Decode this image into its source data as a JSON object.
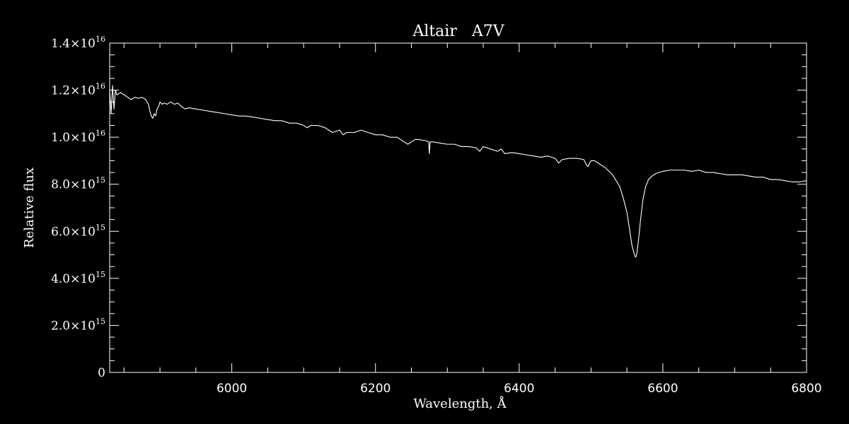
{
  "chart_data": {
    "type": "line",
    "title": "Altair   A7V",
    "xlabel": "Wavelength, Å",
    "ylabel": "Relative flux",
    "xlim": [
      5830,
      6800
    ],
    "ylim": [
      0,
      1.4e+16
    ],
    "grid": false,
    "x_ticks": [
      {
        "value": 6000,
        "label": "6000"
      },
      {
        "value": 6200,
        "label": "6200"
      },
      {
        "value": 6400,
        "label": "6400"
      },
      {
        "value": 6600,
        "label": "6600"
      },
      {
        "value": 6800,
        "label": "6800"
      }
    ],
    "y_ticks": [
      {
        "value": 0,
        "mantissa": "0",
        "exp": ""
      },
      {
        "value": 2000000000000000.0,
        "mantissa": "2.0×10",
        "exp": "15"
      },
      {
        "value": 4000000000000000.0,
        "mantissa": "4.0×10",
        "exp": "15"
      },
      {
        "value": 6000000000000000.0,
        "mantissa": "6.0×10",
        "exp": "15"
      },
      {
        "value": 8000000000000000.0,
        "mantissa": "8.0×10",
        "exp": "15"
      },
      {
        "value": 1e+16,
        "mantissa": "1.0×10",
        "exp": "16"
      },
      {
        "value": 1.2e+16,
        "mantissa": "1.2×10",
        "exp": "16"
      },
      {
        "value": 1.4e+16,
        "mantissa": "1.4×10",
        "exp": "16"
      }
    ],
    "series": [
      {
        "color": "#ffffff",
        "x": [
          5830,
          5832,
          5834,
          5836,
          5838,
          5840,
          5845,
          5850,
          5855,
          5860,
          5865,
          5870,
          5875,
          5880,
          5884,
          5886,
          5888,
          5890,
          5892,
          5894,
          5896,
          5898,
          5900,
          5903,
          5906,
          5910,
          5915,
          5920,
          5925,
          5930,
          5935,
          5940,
          5950,
          5960,
          5970,
          5980,
          5990,
          6000,
          6010,
          6020,
          6030,
          6040,
          6050,
          6060,
          6070,
          6080,
          6090,
          6100,
          6105,
          6110,
          6120,
          6130,
          6140,
          6150,
          6155,
          6160,
          6170,
          6180,
          6190,
          6200,
          6210,
          6220,
          6230,
          6240,
          6245,
          6250,
          6255,
          6260,
          6270,
          6274,
          6275,
          6276,
          6280,
          6290,
          6300,
          6310,
          6320,
          6330,
          6340,
          6345,
          6350,
          6360,
          6370,
          6375,
          6380,
          6390,
          6400,
          6410,
          6420,
          6430,
          6440,
          6450,
          6455,
          6460,
          6470,
          6480,
          6490,
          6494,
          6496,
          6498,
          6500,
          6505,
          6510,
          6520,
          6530,
          6540,
          6545,
          6550,
          6554,
          6557,
          6560,
          6562,
          6563,
          6564,
          6566,
          6569,
          6572,
          6576,
          6580,
          6585,
          6590,
          6600,
          6610,
          6620,
          6630,
          6640,
          6650,
          6660,
          6670,
          6680,
          6690,
          6700,
          6710,
          6720,
          6730,
          6740,
          6750,
          6760,
          6770,
          6780,
          6790,
          6800
        ],
        "y": [
          1.2e+16,
          1.1e+16,
          1.22e+16,
          1.12e+16,
          1.2e+16,
          1.18e+16,
          1.19e+16,
          1.18e+16,
          1.17e+16,
          1.16e+16,
          1.17e+16,
          1.165e+16,
          1.17e+16,
          1.16e+16,
          1.14e+16,
          1.11e+16,
          1.09e+16,
          1.08e+16,
          1.1e+16,
          1.09e+16,
          1.12e+16,
          1.13e+16,
          1.15e+16,
          1.14e+16,
          1.145e+16,
          1.14e+16,
          1.15e+16,
          1.14e+16,
          1.145e+16,
          1.13e+16,
          1.12e+16,
          1.125e+16,
          1.12e+16,
          1.115e+16,
          1.11e+16,
          1.105e+16,
          1.1e+16,
          1.095e+16,
          1.09e+16,
          1.09e+16,
          1.085e+16,
          1.08e+16,
          1.075e+16,
          1.07e+16,
          1.07e+16,
          1.06e+16,
          1.06e+16,
          1.05e+16,
          1.04e+16,
          1.05e+16,
          1.05e+16,
          1.04e+16,
          1.02e+16,
          1.03e+16,
          1.01e+16,
          1.02e+16,
          1.02e+16,
          1.03e+16,
          1.02e+16,
          1.01e+16,
          1.01e+16,
          1e+16,
          1e+16,
          9800000000000000.0,
          9700000000000000.0,
          9800000000000000.0,
          9900000000000000.0,
          9900000000000000.0,
          9850000000000000.0,
          9800000000000000.0,
          9300000000000000.0,
          9800000000000000.0,
          9800000000000000.0,
          9750000000000000.0,
          9700000000000000.0,
          9700000000000000.0,
          9600000000000000.0,
          9600000000000000.0,
          9550000000000000.0,
          9400000000000000.0,
          9600000000000000.0,
          9500000000000000.0,
          9400000000000000.0,
          9500000000000000.0,
          9300000000000000.0,
          9350000000000000.0,
          9300000000000000.0,
          9250000000000000.0,
          9200000000000000.0,
          9150000000000000.0,
          9200000000000000.0,
          9100000000000000.0,
          8900000000000000.0,
          9050000000000000.0,
          9100000000000000.0,
          9100000000000000.0,
          9050000000000000.0,
          8800000000000000.0,
          8750000000000000.0,
          8900000000000000.0,
          9000000000000000.0,
          9000000000000000.0,
          8900000000000000.0,
          8700000000000000.0,
          8400000000000000.0,
          7900000000000000.0,
          7400000000000000.0,
          6800000000000000.0,
          6000000000000000.0,
          5400000000000000.0,
          5050000000000000.0,
          4900000000000000.0,
          4950000000000000.0,
          5100000000000000.0,
          5600000000000000.0,
          6500000000000000.0,
          7300000000000000.0,
          7900000000000000.0,
          8200000000000000.0,
          8350000000000000.0,
          8450000000000000.0,
          8550000000000000.0,
          8600000000000000.0,
          8600000000000000.0,
          8600000000000000.0,
          8550000000000000.0,
          8600000000000000.0,
          8500000000000000.0,
          8500000000000000.0,
          8450000000000000.0,
          8400000000000000.0,
          8400000000000000.0,
          8400000000000000.0,
          8350000000000000.0,
          8300000000000000.0,
          8300000000000000.0,
          8200000000000000.0,
          8200000000000000.0,
          8150000000000000.0,
          8100000000000000.0,
          8100000000000000.0,
          8150000000000000.0
        ]
      }
    ]
  }
}
